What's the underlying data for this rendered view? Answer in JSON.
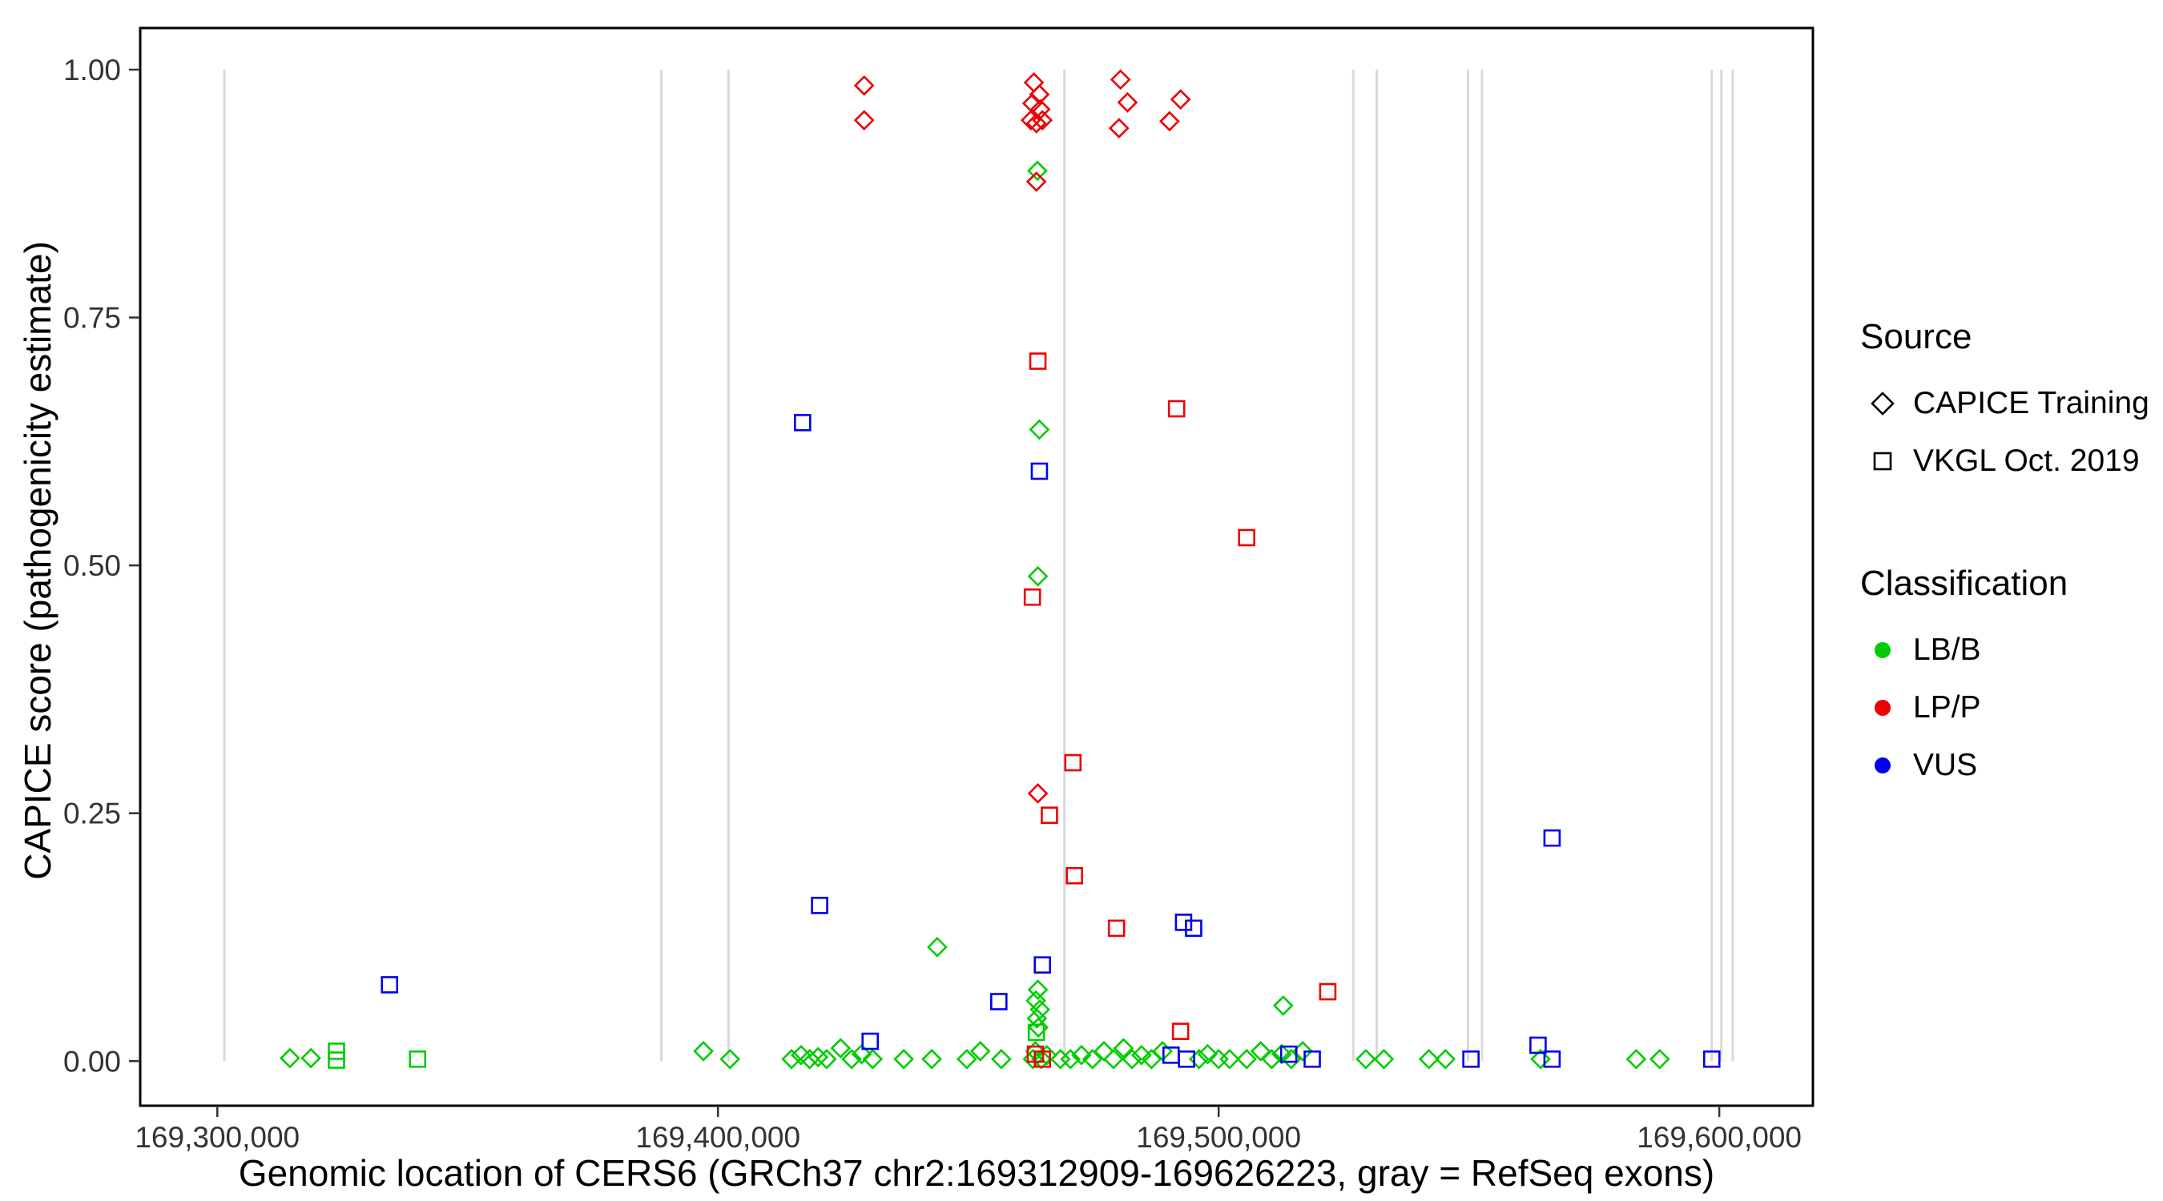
{
  "page": {
    "background": "#ffffff"
  },
  "chart_data": {
    "type": "scatter",
    "title": "",
    "xlabel": "Genomic location of CERS6 (GRCh37 chr2:169312909-169626223, gray = RefSeq exons)",
    "ylabel": "CAPICE score (pathogenicity estimate)",
    "xlim": [
      169284600,
      169618700
    ],
    "ylim": [
      -0.045,
      1.042
    ],
    "grid": false,
    "legend_position": "right",
    "x_ticks": [
      {
        "value": 169300000,
        "label": "169,300,000"
      },
      {
        "value": 169400000,
        "label": "169,400,000"
      },
      {
        "value": 169500000,
        "label": "169,500,000"
      },
      {
        "value": 169600000,
        "label": "169,600,000"
      }
    ],
    "y_ticks": [
      {
        "value": 0.0,
        "label": "0.00"
      },
      {
        "value": 0.25,
        "label": "0.25"
      },
      {
        "value": 0.5,
        "label": "0.50"
      },
      {
        "value": 0.75,
        "label": "0.75"
      },
      {
        "value": 1.0,
        "label": "1.00"
      }
    ],
    "exon_note": "gray vertical lines = RefSeq exons",
    "exon_color": "#d9d9d9",
    "exon_positions": [
      169301400,
      169388700,
      169402100,
      169469200,
      169526900,
      169531600,
      169549800,
      169552600,
      169598500,
      169600400,
      169602700
    ],
    "classification_colors": {
      "LB/B": "#00cd00",
      "LP/P": "#ee0000",
      "VUS": "#0000ee"
    },
    "source_markers": {
      "CAPICE Training": "diamond",
      "VKGL Oct. 2019": "square"
    },
    "source_codes": {
      "T": "CAPICE Training",
      "V": "VKGL Oct. 2019"
    },
    "points_format": [
      "genomic_position",
      "capice_score",
      "source_code",
      "classification"
    ],
    "points": [
      [
        169314500,
        0.003,
        "T",
        "LB/B"
      ],
      [
        169318700,
        0.003,
        "T",
        "LB/B"
      ],
      [
        169397100,
        0.01,
        "T",
        "LB/B"
      ],
      [
        169402400,
        0.002,
        "T",
        "LB/B"
      ],
      [
        169414700,
        0.002,
        "T",
        "LB/B"
      ],
      [
        169416600,
        0.006,
        "T",
        "LB/B"
      ],
      [
        169418300,
        0.002,
        "T",
        "LB/B"
      ],
      [
        169420000,
        0.004,
        "T",
        "LB/B"
      ],
      [
        169421700,
        0.002,
        "T",
        "LB/B"
      ],
      [
        169424500,
        0.013,
        "T",
        "LB/B"
      ],
      [
        169426700,
        0.002,
        "T",
        "LB/B"
      ],
      [
        169428700,
        0.007,
        "T",
        "LB/B"
      ],
      [
        169430900,
        0.002,
        "T",
        "LB/B"
      ],
      [
        169437100,
        0.002,
        "T",
        "LB/B"
      ],
      [
        169442700,
        0.002,
        "T",
        "LB/B"
      ],
      [
        169449700,
        0.002,
        "T",
        "LB/B"
      ],
      [
        169452400,
        0.01,
        "T",
        "LB/B"
      ],
      [
        169456600,
        0.002,
        "T",
        "LB/B"
      ],
      [
        169462900,
        0.002,
        "T",
        "LB/B"
      ],
      [
        169463400,
        0.01,
        "T",
        "LB/B"
      ],
      [
        169464600,
        0.002,
        "T",
        "LB/B"
      ],
      [
        169465700,
        0.006,
        "T",
        "LB/B"
      ],
      [
        169468400,
        0.002,
        "T",
        "LB/B"
      ],
      [
        169470400,
        0.002,
        "T",
        "LB/B"
      ],
      [
        169472600,
        0.006,
        "T",
        "LB/B"
      ],
      [
        169474800,
        0.002,
        "T",
        "LB/B"
      ],
      [
        169477100,
        0.01,
        "T",
        "LB/B"
      ],
      [
        169479000,
        0.002,
        "T",
        "LB/B"
      ],
      [
        169481000,
        0.013,
        "T",
        "LB/B"
      ],
      [
        169482700,
        0.002,
        "T",
        "LB/B"
      ],
      [
        169484600,
        0.006,
        "T",
        "LB/B"
      ],
      [
        169486600,
        0.002,
        "T",
        "LB/B"
      ],
      [
        169488800,
        0.01,
        "T",
        "LB/B"
      ],
      [
        169496100,
        0.002,
        "T",
        "LB/B"
      ],
      [
        169497800,
        0.007,
        "T",
        "LB/B"
      ],
      [
        169500000,
        0.002,
        "T",
        "LB/B"
      ],
      [
        169502200,
        0.002,
        "T",
        "LB/B"
      ],
      [
        169505600,
        0.002,
        "T",
        "LB/B"
      ],
      [
        169508400,
        0.01,
        "T",
        "LB/B"
      ],
      [
        169510600,
        0.002,
        "T",
        "LB/B"
      ],
      [
        169512600,
        0.007,
        "T",
        "LB/B"
      ],
      [
        169514500,
        0.002,
        "T",
        "LB/B"
      ],
      [
        169516800,
        0.01,
        "T",
        "LB/B"
      ],
      [
        169529400,
        0.002,
        "T",
        "LB/B"
      ],
      [
        169533000,
        0.002,
        "T",
        "LB/B"
      ],
      [
        169542000,
        0.002,
        "T",
        "LB/B"
      ],
      [
        169545300,
        0.002,
        "T",
        "LB/B"
      ],
      [
        169564300,
        0.002,
        "T",
        "LB/B"
      ],
      [
        169583400,
        0.002,
        "T",
        "LB/B"
      ],
      [
        169588100,
        0.002,
        "T",
        "LB/B"
      ],
      [
        169463800,
        0.898,
        "T",
        "LB/B"
      ],
      [
        169464200,
        0.637,
        "T",
        "LB/B"
      ],
      [
        169463900,
        0.489,
        "T",
        "LB/B"
      ],
      [
        169443800,
        0.115,
        "T",
        "LB/B"
      ],
      [
        169512900,
        0.056,
        "T",
        "LB/B"
      ],
      [
        169463900,
        0.072,
        "T",
        "LB/B"
      ],
      [
        169463500,
        0.061,
        "T",
        "LB/B"
      ],
      [
        169464300,
        0.052,
        "T",
        "LB/B"
      ],
      [
        169463700,
        0.043,
        "T",
        "LB/B"
      ],
      [
        169464000,
        0.034,
        "T",
        "LB/B"
      ],
      [
        169323800,
        0.01,
        "V",
        "LB/B"
      ],
      [
        169323800,
        0.001,
        "V",
        "LB/B"
      ],
      [
        169340000,
        0.002,
        "V",
        "LB/B"
      ],
      [
        169463600,
        0.029,
        "V",
        "LB/B"
      ],
      [
        169416900,
        0.644,
        "V",
        "VUS"
      ],
      [
        169464200,
        0.595,
        "V",
        "VUS"
      ],
      [
        169566600,
        0.225,
        "V",
        "VUS"
      ],
      [
        169420300,
        0.157,
        "V",
        "VUS"
      ],
      [
        169493000,
        0.14,
        "V",
        "VUS"
      ],
      [
        169495000,
        0.134,
        "V",
        "VUS"
      ],
      [
        169464800,
        0.097,
        "V",
        "VUS"
      ],
      [
        169456100,
        0.06,
        "V",
        "VUS"
      ],
      [
        169334400,
        0.077,
        "V",
        "VUS"
      ],
      [
        169430400,
        0.02,
        "V",
        "VUS"
      ],
      [
        169490500,
        0.006,
        "V",
        "VUS"
      ],
      [
        169493600,
        0.002,
        "V",
        "VUS"
      ],
      [
        169514000,
        0.007,
        "V",
        "VUS"
      ],
      [
        169518700,
        0.002,
        "V",
        "VUS"
      ],
      [
        169550400,
        0.002,
        "V",
        "VUS"
      ],
      [
        169563800,
        0.016,
        "V",
        "VUS"
      ],
      [
        169566600,
        0.002,
        "V",
        "VUS"
      ],
      [
        169598500,
        0.002,
        "V",
        "VUS"
      ],
      [
        169429200,
        0.984,
        "T",
        "LP/P"
      ],
      [
        169429200,
        0.949,
        "T",
        "LP/P"
      ],
      [
        169463100,
        0.987,
        "T",
        "LP/P"
      ],
      [
        169464200,
        0.975,
        "T",
        "LP/P"
      ],
      [
        169462800,
        0.966,
        "T",
        "LP/P"
      ],
      [
        169464400,
        0.96,
        "T",
        "LP/P"
      ],
      [
        169462500,
        0.949,
        "T",
        "LP/P"
      ],
      [
        169463600,
        0.946,
        "T",
        "LP/P"
      ],
      [
        169464800,
        0.949,
        "T",
        "LP/P"
      ],
      [
        169480400,
        0.99,
        "T",
        "LP/P"
      ],
      [
        169481800,
        0.967,
        "T",
        "LP/P"
      ],
      [
        169480100,
        0.941,
        "T",
        "LP/P"
      ],
      [
        169492400,
        0.97,
        "T",
        "LP/P"
      ],
      [
        169490200,
        0.948,
        "T",
        "LP/P"
      ],
      [
        169463600,
        0.887,
        "T",
        "LP/P"
      ],
      [
        169463900,
        0.27,
        "T",
        "LP/P"
      ],
      [
        169463900,
        0.706,
        "V",
        "LP/P"
      ],
      [
        169491600,
        0.658,
        "V",
        "LP/P"
      ],
      [
        169505600,
        0.528,
        "V",
        "LP/P"
      ],
      [
        169462800,
        0.468,
        "V",
        "LP/P"
      ],
      [
        169470900,
        0.301,
        "V",
        "LP/P"
      ],
      [
        169466200,
        0.248,
        "V",
        "LP/P"
      ],
      [
        169471200,
        0.187,
        "V",
        "LP/P"
      ],
      [
        169479600,
        0.134,
        "V",
        "LP/P"
      ],
      [
        169521800,
        0.07,
        "V",
        "LP/P"
      ],
      [
        169492400,
        0.03,
        "V",
        "LP/P"
      ],
      [
        169463400,
        0.007,
        "V",
        "LP/P"
      ],
      [
        169464800,
        0.002,
        "V",
        "LP/P"
      ]
    ],
    "legend": {
      "source": {
        "title": "Source",
        "items": [
          {
            "label": "CAPICE Training",
            "marker": "diamond"
          },
          {
            "label": "VKGL Oct. 2019",
            "marker": "square"
          }
        ]
      },
      "classification": {
        "title": "Classification",
        "items": [
          {
            "label": "LB/B",
            "color": "#00cd00"
          },
          {
            "label": "LP/P",
            "color": "#ee0000"
          },
          {
            "label": "VUS",
            "color": "#0000ee"
          }
        ]
      }
    }
  }
}
